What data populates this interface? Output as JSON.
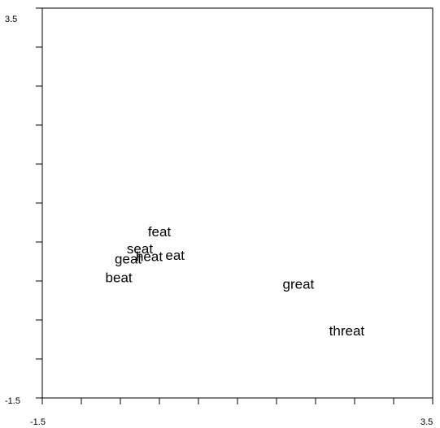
{
  "chart_data": {
    "type": "scatter",
    "title": "",
    "xlabel": "",
    "ylabel": "",
    "xlim": [
      -1.5,
      3.5
    ],
    "ylim": [
      -1.5,
      3.5
    ],
    "x_tick_labels": [
      "-1.5",
      "3.5"
    ],
    "y_tick_labels": [
      "3.5",
      "-1.5"
    ],
    "x_minor_tick_count": 11,
    "y_minor_tick_count": 11,
    "grid": false,
    "points": [
      {
        "label": "feat",
        "x": 0.0,
        "y": 0.62
      },
      {
        "label": "seat",
        "x": -0.25,
        "y": 0.4
      },
      {
        "label": "heat",
        "x": -0.13,
        "y": 0.3
      },
      {
        "label": "eat",
        "x": 0.2,
        "y": 0.32
      },
      {
        "label": "geat",
        "x": -0.4,
        "y": 0.27
      },
      {
        "label": "beat",
        "x": -0.52,
        "y": 0.03
      },
      {
        "label": "great",
        "x": 1.78,
        "y": -0.05
      },
      {
        "label": "threat",
        "x": 2.4,
        "y": -0.65
      }
    ]
  }
}
